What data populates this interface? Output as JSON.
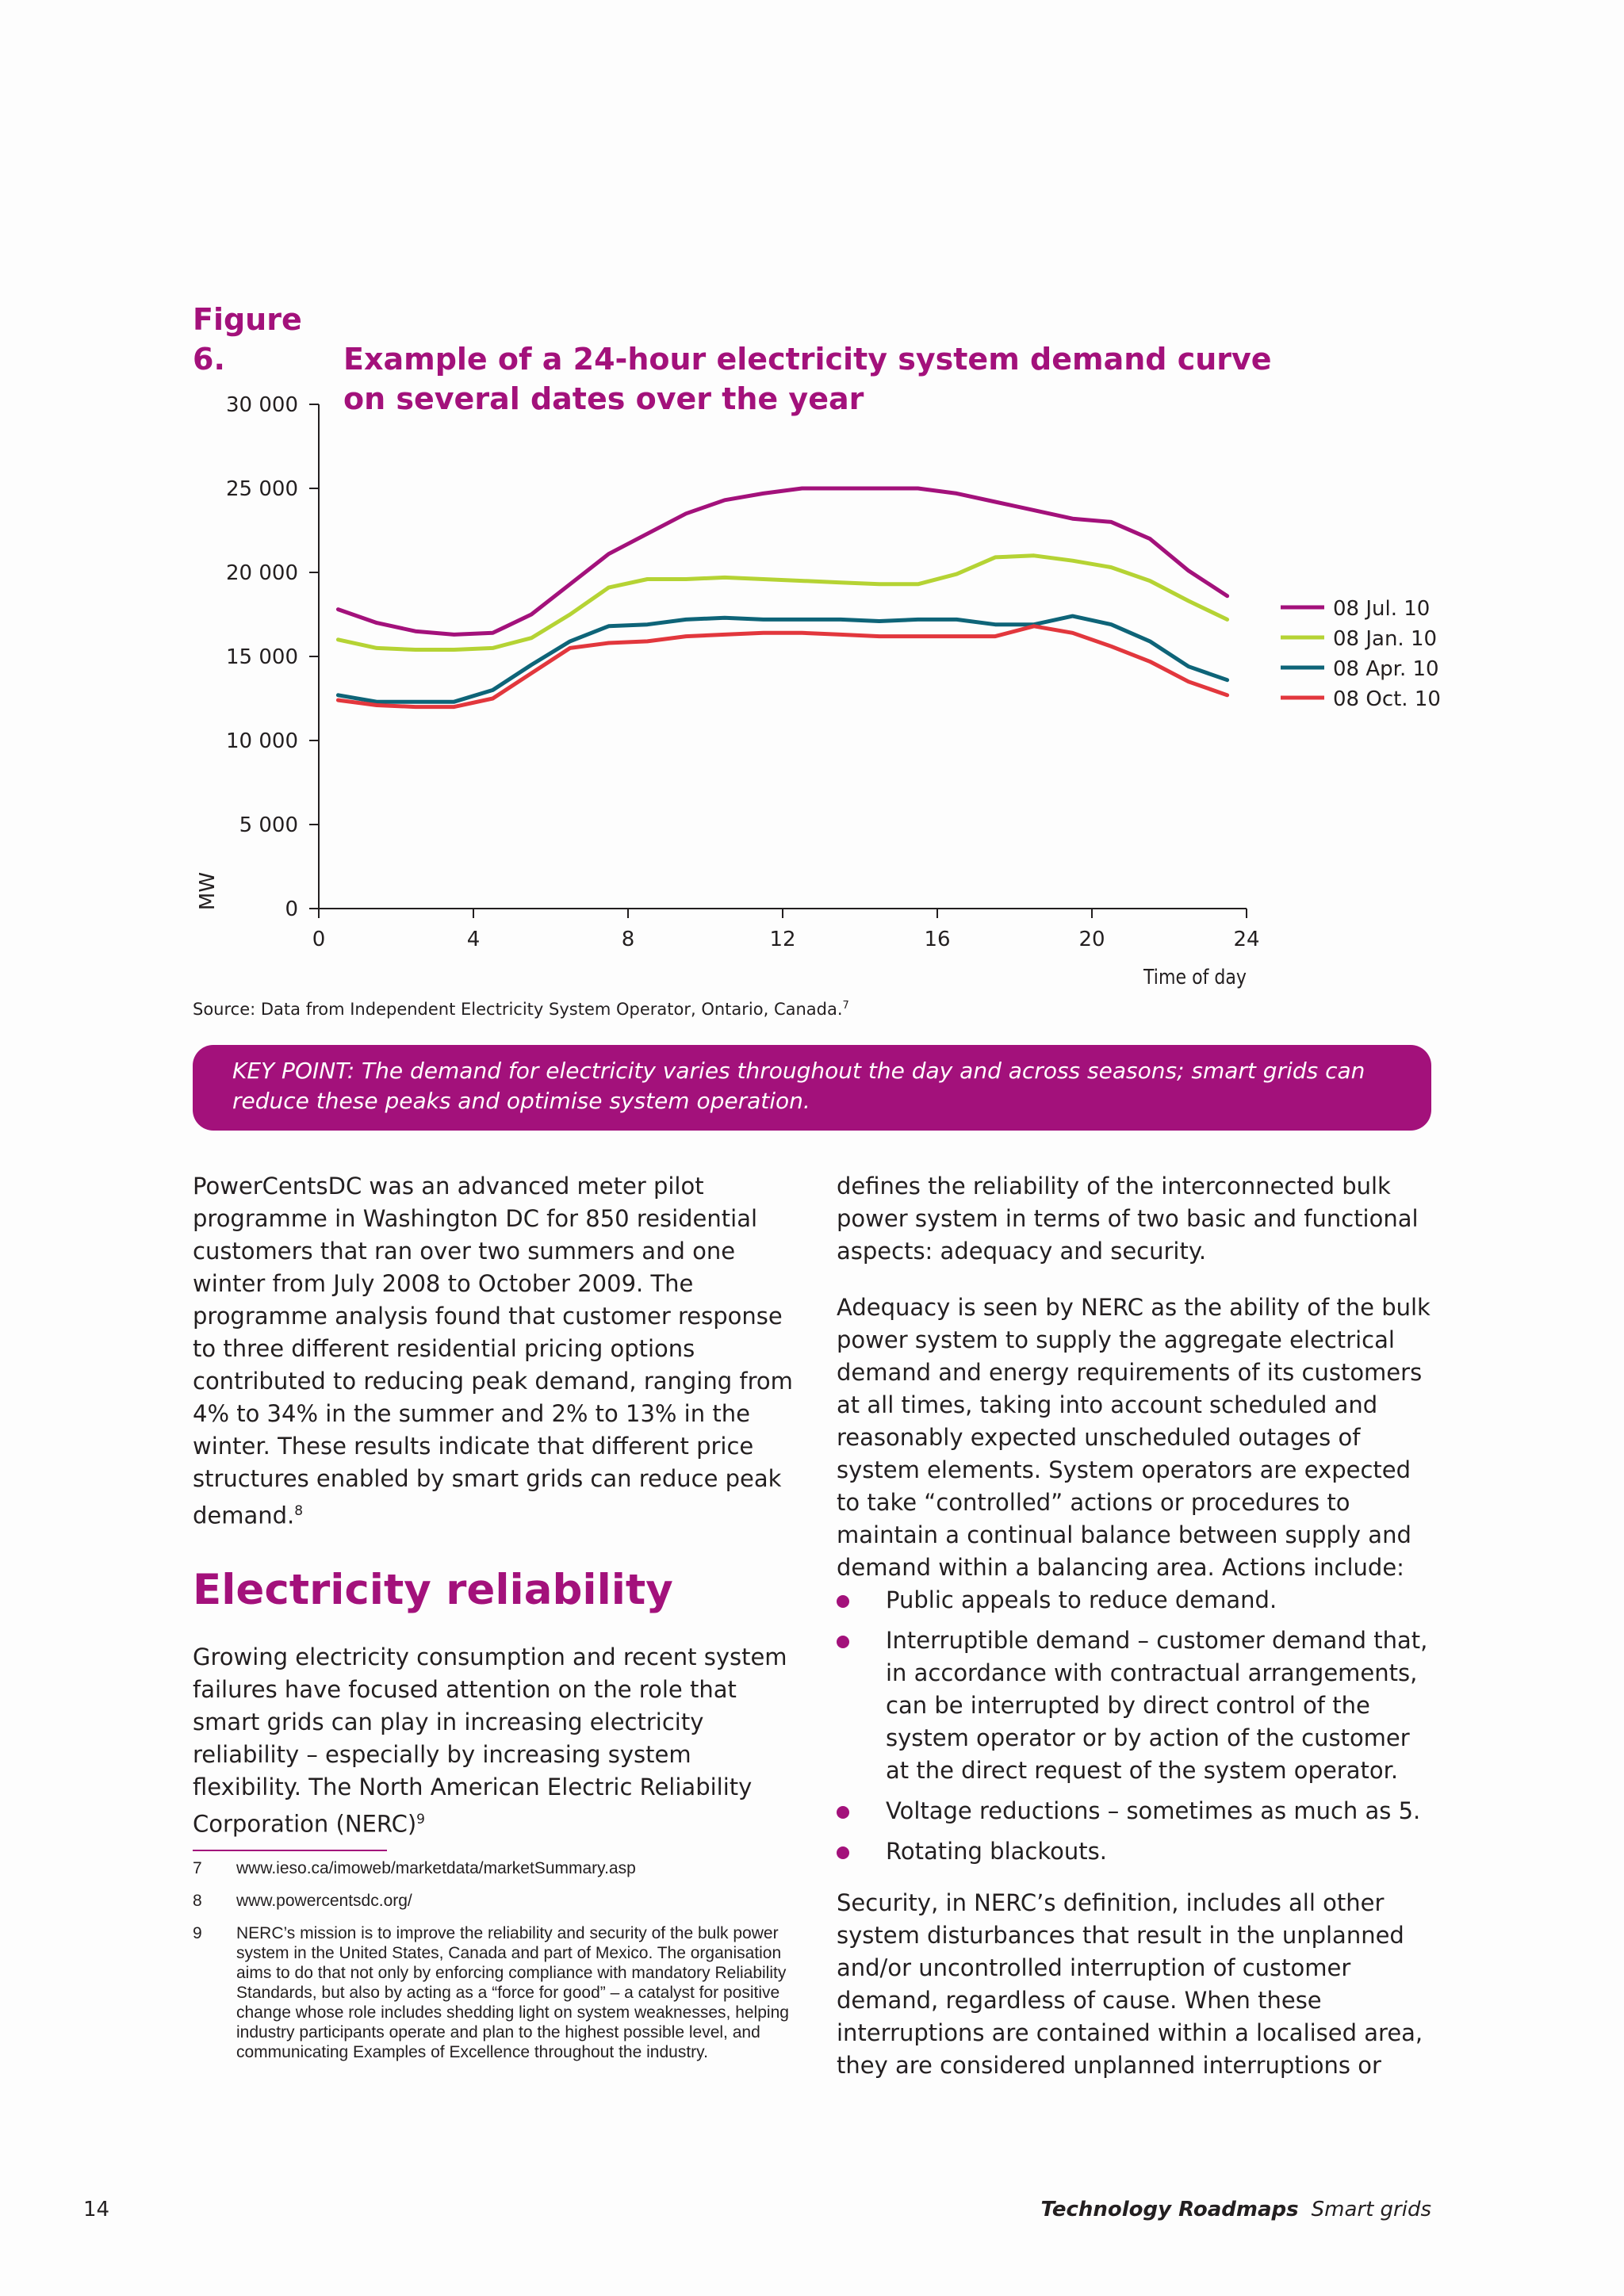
{
  "figure": {
    "number": "Figure 6.",
    "title_line1": "Example of a 24-hour electricity system demand curve",
    "title_line2": "on several dates over the year"
  },
  "chart_data": {
    "type": "line",
    "title": "Example of a 24-hour electricity system demand curve on several dates over the year",
    "xlabel": "Time of day",
    "ylabel": "MW",
    "xlim": [
      0,
      24
    ],
    "ylim": [
      0,
      30000
    ],
    "xticks": [
      "0",
      "4",
      "8",
      "12",
      "16",
      "20",
      "24"
    ],
    "yticks": [
      "0",
      "5 000",
      "10 000",
      "15 000",
      "20 000",
      "25 000",
      "30 000"
    ],
    "grid": false,
    "legend_position": "right",
    "x": [
      0.5,
      1.5,
      2.5,
      3.5,
      4.5,
      5.5,
      6.5,
      7.5,
      8.5,
      9.5,
      10.5,
      11.5,
      12.5,
      13.5,
      14.5,
      15.5,
      16.5,
      17.5,
      18.5,
      19.5,
      20.5,
      21.5,
      22.5,
      23.5
    ],
    "series": [
      {
        "name": "08 Jul. 10",
        "color": "#a3117b",
        "values": [
          17800,
          17000,
          16500,
          16300,
          16400,
          17500,
          19300,
          21100,
          22300,
          23500,
          24300,
          24700,
          25000,
          25000,
          25000,
          25000,
          24700,
          24200,
          23700,
          23200,
          23000,
          22000,
          20100,
          18600
        ]
      },
      {
        "name": "08 Jan. 10",
        "color": "#b5d334",
        "values": [
          16000,
          15500,
          15400,
          15400,
          15500,
          16100,
          17500,
          19100,
          19600,
          19600,
          19700,
          19600,
          19500,
          19400,
          19300,
          19300,
          19900,
          20900,
          21000,
          20700,
          20300,
          19500,
          18300,
          17200
        ]
      },
      {
        "name": "08 Apr. 10",
        "color": "#0e6478",
        "values": [
          12700,
          12300,
          12300,
          12300,
          13000,
          14500,
          15900,
          16800,
          16900,
          17200,
          17300,
          17200,
          17200,
          17200,
          17100,
          17200,
          17200,
          16900,
          16900,
          17400,
          16900,
          15900,
          14400,
          13600
        ]
      },
      {
        "name": "08 Oct. 10",
        "color": "#e2373d",
        "values": [
          12400,
          12100,
          12000,
          12000,
          12500,
          14000,
          15500,
          15800,
          15900,
          16200,
          16300,
          16400,
          16400,
          16300,
          16200,
          16200,
          16200,
          16200,
          16800,
          16400,
          15600,
          14700,
          13500,
          12700
        ]
      }
    ]
  },
  "source": {
    "text": "Source: Data from Independent Electricity System Operator, Ontario, Canada.",
    "ref": "7"
  },
  "keypoint": {
    "text": "KEY POINT: The demand for electricity varies throughout the day and across seasons; smart grids can reduce these peaks and optimise system operation."
  },
  "left_column": {
    "para1": "PowerCentsDC was an advanced meter pilot programme in Washington DC for 850 residential customers that ran over two summers and one winter from July 2008 to October 2009. The programme analysis found that customer response to three different residential pricing options contributed to reducing peak demand, ranging from 4% to 34% in the summer and 2% to 13% in the winter. These results indicate that different price structures enabled by smart grids can reduce peak demand.",
    "para1_ref": "8",
    "heading": "Electricity reliability",
    "para2": "Growing electricity consumption and recent system failures have focused attention on the role that smart grids can play in increasing electricity reliability – especially by increasing system flexibility. The North American Electric Reliability Corporation (NERC)",
    "para2_ref": "9"
  },
  "right_column": {
    "para1": "defines the reliability of the interconnected bulk power system in terms of two basic and functional aspects: adequacy and security.",
    "para2": "Adequacy is seen by NERC as the ability of the bulk power system to supply the aggregate electrical demand and energy requirements of its customers at all times, taking into account scheduled and reasonably expected unscheduled outages of system elements. System operators are expected to take “controlled” actions or procedures to maintain a continual balance between supply and demand within a balancing area. Actions include:",
    "bullets": [
      "Public appeals to reduce demand.",
      "Interruptible demand – customer demand that, in accordance with contractual arrangements, can be interrupted by direct control of the system operator or by action of the customer at the direct request of the system operator.",
      "Voltage reductions – sometimes as much as 5.",
      "Rotating blackouts."
    ],
    "para3": "Security, in NERC’s definition, includes all other system disturbances that result in the unplanned and/or uncontrolled interruption of customer demand, regardless of cause. When these interruptions are contained within a localised area, they are considered unplanned interruptions or"
  },
  "footnotes": [
    {
      "num": "7",
      "text": "www.ieso.ca/imoweb/marketdata/marketSummary.asp"
    },
    {
      "num": "8",
      "text": "www.powercentsdc.org/"
    },
    {
      "num": "9",
      "text": "NERC’s mission is to improve the reliability and security of the bulk power system in the United States, Canada and part of Mexico. The organisation aims to do that not only by enforcing compliance with mandatory Reliability Standards, but also by acting as a “force for good” – a catalyst for positive change whose role includes shedding light on system weaknesses, helping industry participants operate and plan to the highest possible level, and communicating Examples of Excellence throughout the industry."
    }
  ],
  "footer": {
    "page_number": "14",
    "series": "Technology Roadmaps",
    "subtitle": "Smart grids"
  }
}
